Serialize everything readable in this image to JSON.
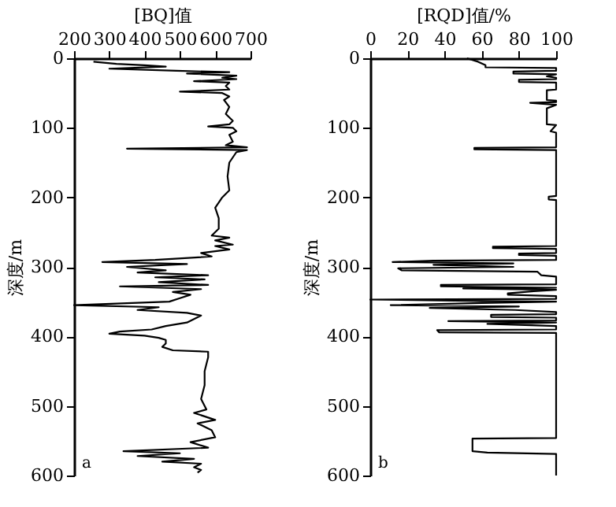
{
  "chart_data": [
    {
      "type": "line",
      "xlabel": "[BQ]值",
      "ylabel": "深度/m",
      "annotations": [
        "a"
      ],
      "xlim": [
        200,
        700
      ],
      "xticks": [
        200,
        300,
        400,
        500,
        600,
        700
      ],
      "ylim": [
        600,
        0
      ],
      "yticks": [
        0,
        100,
        200,
        300,
        400,
        500,
        600
      ],
      "grid": false,
      "marker": "none",
      "line_style": "solid",
      "series": [
        {
          "color": "#000000",
          "x": [
            255,
            320,
            400,
            460,
            300,
            490,
            640,
            520,
            660,
            620,
            660,
            540,
            640,
            630,
            640,
            500,
            620,
            640,
            625,
            640,
            630,
            650,
            640,
            580,
            650,
            660,
            640,
            650,
            630,
            690,
            350,
            690,
            660,
            640,
            635,
            640,
            620,
            600,
            610,
            610,
            590,
            640,
            600,
            650,
            600,
            640,
            560,
            590,
            430,
            280,
            520,
            350,
            460,
            380,
            580,
            430,
            570,
            440,
            580,
            330,
            560,
            480,
            530,
            500,
            470,
            200,
            440,
            380,
            520,
            560,
            540,
            520,
            460,
            420,
            330,
            300,
            400,
            440,
            460,
            460,
            450,
            480,
            580,
            580,
            570,
            570,
            560,
            575,
            540,
            600,
            550,
            590,
            600,
            530,
            580,
            340,
            500,
            380,
            540,
            450,
            560,
            540,
            560,
            550
          ],
          "values": [
            5,
            8,
            10,
            12,
            15,
            18,
            20,
            22,
            25,
            28,
            30,
            33,
            35,
            40,
            45,
            48,
            50,
            55,
            60,
            70,
            80,
            90,
            95,
            98,
            100,
            105,
            110,
            120,
            125,
            128,
            130,
            132,
            135,
            150,
            170,
            190,
            200,
            215,
            230,
            245,
            255,
            258,
            262,
            268,
            270,
            275,
            280,
            285,
            290,
            293,
            296,
            300,
            305,
            308,
            312,
            315,
            318,
            322,
            326,
            328,
            332,
            336,
            340,
            345,
            350,
            355,
            358,
            362,
            366,
            370,
            375,
            380,
            385,
            390,
            393,
            396,
            399,
            402,
            405,
            410,
            415,
            420,
            422,
            430,
            450,
            470,
            490,
            505,
            510,
            520,
            525,
            535,
            545,
            552,
            560,
            565,
            568,
            572,
            576,
            580,
            583,
            588,
            592,
            596
          ]
        }
      ]
    },
    {
      "type": "line",
      "xlabel": "[RQD]值/%",
      "ylabel": "深度/m",
      "annotations": [
        "b"
      ],
      "xlim": [
        0,
        100
      ],
      "xticks": [
        0,
        20,
        40,
        60,
        80,
        100
      ],
      "ylim": [
        600,
        0
      ],
      "yticks": [
        0,
        100,
        200,
        300,
        400,
        500,
        600
      ],
      "grid": false,
      "marker": "none",
      "line_style": "solid",
      "series": [
        {
          "color": "#000000",
          "x": [
            52,
            58,
            62,
            62,
            100,
            100,
            77,
            77,
            100,
            95,
            100,
            100,
            80,
            80,
            100,
            100,
            95,
            95,
            100,
            100,
            86,
            100,
            95,
            95,
            100,
            97,
            100,
            100,
            56,
            56,
            100,
            100,
            96,
            96,
            100,
            100,
            66,
            66,
            100,
            100,
            80,
            80,
            100,
            100,
            34,
            12,
            77,
            34,
            77,
            15,
            17,
            90,
            92,
            100,
            100,
            38,
            38,
            100,
            50,
            100,
            88,
            74,
            74,
            100,
            100,
            0,
            60,
            100,
            60,
            11,
            80,
            32,
            78,
            100,
            100,
            65,
            65,
            100,
            100,
            42,
            100,
            63,
            100,
            100,
            36,
            37,
            100,
            100,
            100,
            55,
            55,
            63,
            100,
            100
          ],
          "values": [
            0,
            5,
            10,
            13,
            14,
            18,
            19,
            22,
            23,
            26,
            28,
            30,
            31,
            34,
            35,
            45,
            46,
            60,
            61,
            63,
            64,
            67,
            72,
            95,
            96,
            105,
            107,
            128,
            129,
            131,
            132,
            198,
            199,
            203,
            204,
            270,
            271,
            273,
            274,
            280,
            281,
            283,
            284,
            290,
            291,
            293,
            295,
            297,
            300,
            302,
            305,
            307,
            312,
            314,
            325,
            326,
            328,
            330,
            331,
            333,
            335,
            338,
            340,
            342,
            346,
            347,
            349,
            350,
            352,
            355,
            357,
            359,
            362,
            365,
            368,
            369,
            372,
            373,
            377,
            378,
            380,
            382,
            385,
            390,
            391,
            394,
            395,
            400,
            546,
            547,
            565,
            567,
            569,
            600
          ]
        }
      ]
    }
  ]
}
